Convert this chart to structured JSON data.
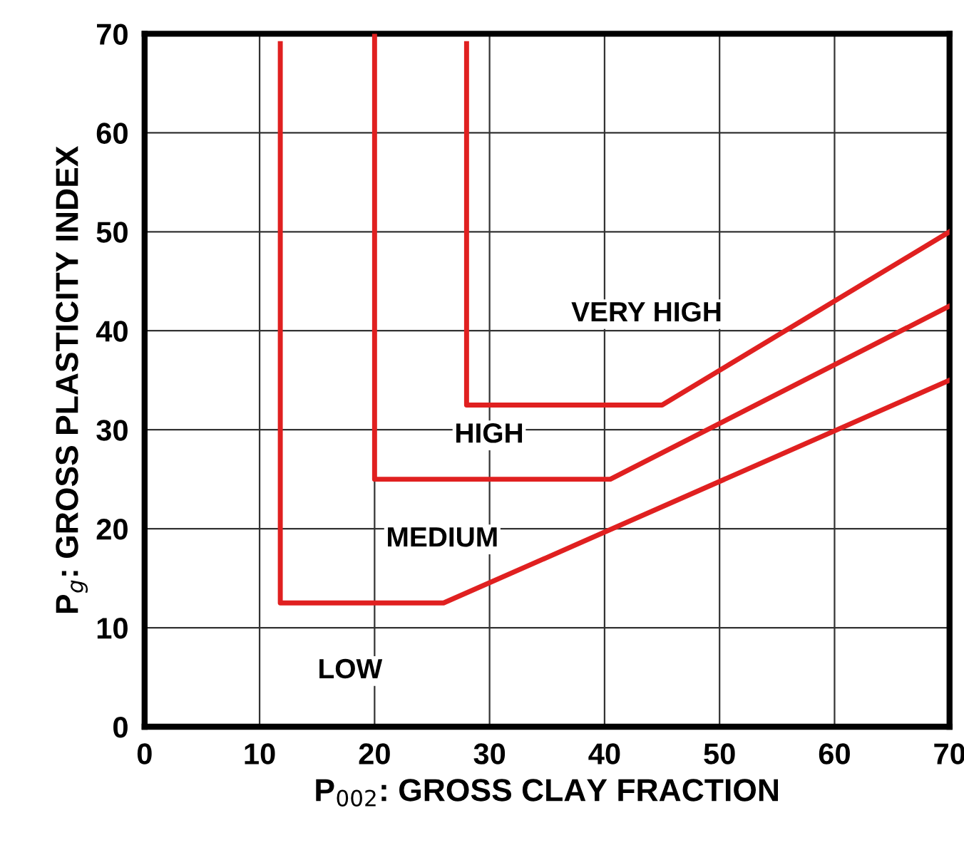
{
  "chart_data": {
    "type": "line",
    "xlabel": "P$_{002}$: GROSS CLAY FRACTION",
    "ylabel": "P$_{g}$: GROSS PLASTICITY INDEX",
    "series": [
      {
        "color": "#e02020",
        "x": [
          11.8,
          11.8,
          26,
          70
        ],
        "values": [
          69,
          12.5,
          12.5,
          35
        ]
      },
      {
        "color": "#e02020",
        "x": [
          20,
          20,
          40.5,
          70
        ],
        "values": [
          70,
          25,
          25,
          42.5
        ]
      },
      {
        "color": "#e02020",
        "x": [
          28,
          28,
          45,
          70
        ],
        "values": [
          69,
          32.5,
          32.5,
          50
        ]
      }
    ],
    "xlim": [
      0,
      70
    ],
    "ylim": [
      0,
      70
    ],
    "xticks": [
      0,
      10,
      20,
      30,
      40,
      50,
      60,
      70
    ],
    "yticks": [
      0,
      10,
      20,
      30,
      40,
      50,
      60,
      70
    ],
    "grid": true,
    "marker": "none",
    "line_style": "solid",
    "annotations": [
      "LOW",
      "MEDIUM",
      "HIGH",
      "VERY HIGH"
    ]
  }
}
